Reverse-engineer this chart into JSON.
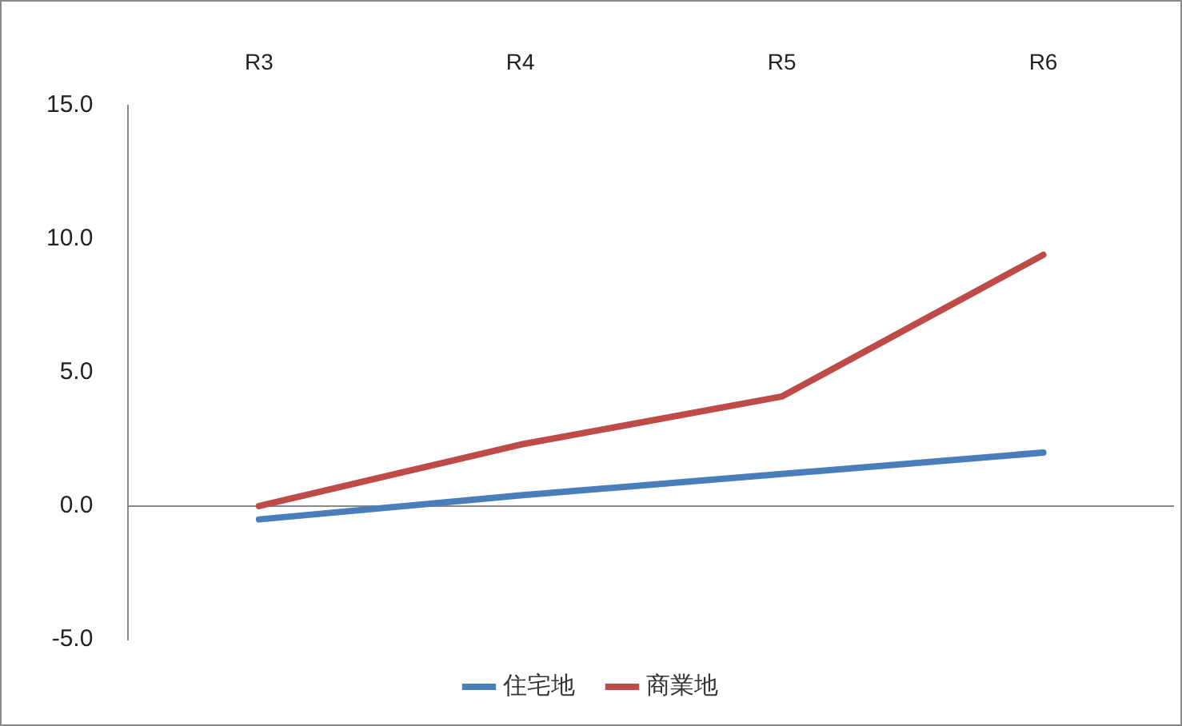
{
  "chart_data": {
    "type": "line",
    "categories": [
      "R3",
      "R4",
      "R5",
      "R6"
    ],
    "series": [
      {
        "name": "住宅地",
        "color": "#4a7ebb",
        "values": [
          -0.5,
          0.4,
          1.2,
          2.0
        ]
      },
      {
        "name": "商業地",
        "color": "#be4b48",
        "values": [
          0.0,
          2.3,
          4.1,
          9.4
        ]
      }
    ],
    "ylim": [
      -5,
      15
    ],
    "yticks": [
      {
        "value": -5,
        "label": "-5.0"
      },
      {
        "value": 0,
        "label": "0.0"
      },
      {
        "value": 5,
        "label": "5.0"
      },
      {
        "value": 10,
        "label": "10.0"
      },
      {
        "value": 15,
        "label": "15.0"
      }
    ],
    "ref_lines": [
      {
        "axis": "y",
        "value": 0,
        "color": "#888888"
      }
    ],
    "grid": false,
    "legend": "bottom",
    "marker": "none",
    "line_style": "solid"
  }
}
